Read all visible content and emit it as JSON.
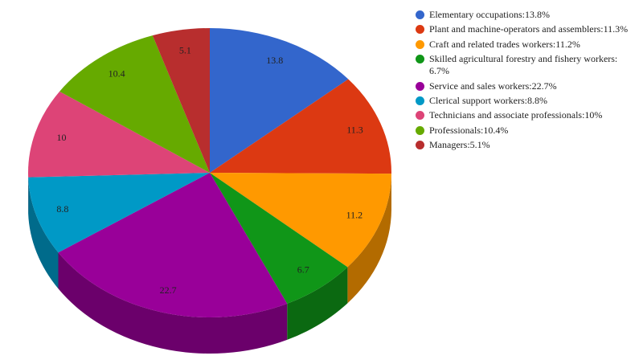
{
  "chart_data": {
    "type": "pie3d",
    "categories": [
      "Elementary occupations:13.8%",
      "Plant and machine-operators and assemblers:11.3%",
      "Craft and related trades workers:11.2%",
      "Skilled agricultural forestry and fishery workers: 6.7%",
      "Service and sales workers:22.7%",
      "Clerical support workers:8.8%",
      "Technicians and associate professionals:10%",
      "Professionals:10.4%",
      "Managers:5.1%"
    ],
    "values": [
      13.8,
      11.3,
      11.2,
      6.7,
      22.7,
      8.8,
      10,
      10.4,
      5.1
    ],
    "colors": [
      "#3366cc",
      "#dc3912",
      "#ff9900",
      "#109618",
      "#990099",
      "#0099c6",
      "#dd4477",
      "#66aa00",
      "#b82e2e"
    ],
    "legend": "right"
  }
}
